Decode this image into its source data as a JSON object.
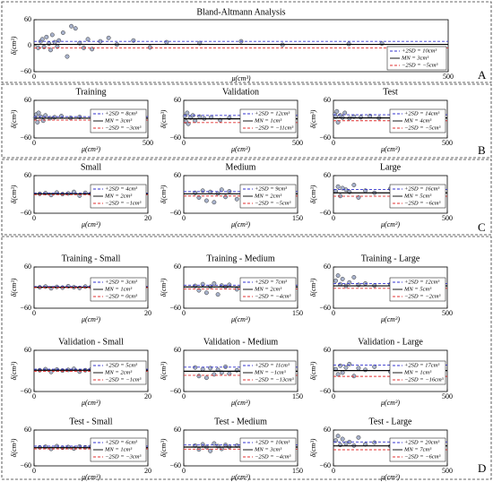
{
  "panel_labels": [
    "A",
    "B",
    "C",
    "D"
  ],
  "chart_data": [
    {
      "type": "scatter",
      "title": "Bland-Altmann Analysis",
      "xlabel": "μ(cm³)",
      "ylabel": "δ(cm³)",
      "x": [
        5,
        8,
        10,
        12,
        15,
        18,
        20,
        22,
        25,
        28,
        30,
        35,
        40,
        45,
        50,
        55,
        60,
        65,
        70,
        80,
        90,
        100,
        120,
        140,
        160,
        200,
        250,
        300,
        380,
        420
      ],
      "values": [
        -5,
        10,
        15,
        -3,
        20,
        5,
        -10,
        25,
        8,
        -2,
        12,
        30,
        -25,
        45,
        40,
        6,
        -5,
        15,
        -8,
        10,
        18,
        3,
        12,
        -4,
        8,
        6,
        10,
        2,
        4,
        5
      ],
      "xlim": [
        0,
        500
      ],
      "ylim": [
        -60,
        60
      ],
      "xticks": [
        0,
        500
      ],
      "yticks": [
        {
          "value": -60,
          "label": "−60"
        },
        0,
        60
      ],
      "series": [
        {
          "name": "+2SD = 10cm³",
          "value": 10,
          "color": "#3333cc"
        },
        {
          "name": "MN = 3cm³",
          "value": 3,
          "color": "#000000"
        },
        {
          "name": "−2SD = −5cm³",
          "value": -5,
          "color": "#e03030"
        }
      ]
    },
    {
      "type": "scatter",
      "title": "Training",
      "xlabel": "μ(cm³)",
      "ylabel": "δ(cm³)",
      "x": [
        5,
        10,
        15,
        20,
        30,
        40,
        50,
        70,
        90,
        120,
        160,
        200
      ],
      "values": [
        5,
        15,
        -10,
        20,
        8,
        -5,
        12,
        3,
        6,
        10,
        4,
        7
      ],
      "xlim": [
        0,
        500
      ],
      "ylim": [
        -60,
        60
      ],
      "xticks": [
        0,
        500
      ],
      "yticks": [
        {
          "value": -60,
          "label": "−60"
        },
        60
      ],
      "series": [
        {
          "name": "+2SD = 8cm³",
          "value": 8,
          "color": "#3333cc"
        },
        {
          "name": "MN = 3cm³",
          "value": 3,
          "color": "#000000"
        },
        {
          "name": "−2SD = −3cm³",
          "value": -3,
          "color": "#e03030"
        }
      ]
    },
    {
      "type": "scatter",
      "title": "Validation",
      "xlabel": "μ(cm³)",
      "ylabel": "δ(cm³)",
      "x": [
        5,
        10,
        15,
        20,
        30,
        40,
        50,
        70,
        90,
        120,
        160,
        200
      ],
      "values": [
        10,
        -8,
        20,
        -15,
        5,
        12,
        -5,
        8,
        2,
        6,
        -3,
        4
      ],
      "xlim": [
        0,
        500
      ],
      "ylim": [
        -60,
        60
      ],
      "xticks": [
        0,
        500
      ],
      "yticks": [
        {
          "value": -60,
          "label": "−60"
        },
        60
      ],
      "series": [
        {
          "name": "+2SD = 12cm³",
          "value": 12,
          "color": "#3333cc"
        },
        {
          "name": "MN = 1cm³",
          "value": 1,
          "color": "#000000"
        },
        {
          "name": "−2SD = −11cm³",
          "value": -11,
          "color": "#e03030"
        }
      ]
    },
    {
      "type": "scatter",
      "title": "Test",
      "xlabel": "μ(cm³)",
      "ylabel": "δ(cm³)",
      "x": [
        5,
        10,
        15,
        20,
        30,
        40,
        50,
        70,
        90,
        120,
        160,
        200
      ],
      "values": [
        15,
        8,
        25,
        -10,
        12,
        5,
        20,
        3,
        8,
        6,
        10,
        4
      ],
      "xlim": [
        0,
        500
      ],
      "ylim": [
        -60,
        60
      ],
      "xticks": [
        0,
        500
      ],
      "yticks": [
        {
          "value": -60,
          "label": "−60"
        },
        60
      ],
      "series": [
        {
          "name": "+2SD = 14cm³",
          "value": 14,
          "color": "#3333cc"
        },
        {
          "name": "MN = 4cm³",
          "value": 4,
          "color": "#000000"
        },
        {
          "name": "−2SD = −5cm³",
          "value": -5,
          "color": "#e03030"
        }
      ]
    },
    {
      "type": "scatter",
      "title": "Small",
      "xlabel": "μ(cm³)",
      "ylabel": "δ(cm³)",
      "x": [
        1,
        2,
        3,
        4,
        5,
        6,
        7,
        8,
        9,
        10,
        12,
        14
      ],
      "values": [
        2,
        4,
        -2,
        6,
        1,
        3,
        8,
        -4,
        5,
        2,
        10,
        3
      ],
      "xlim": [
        0,
        20
      ],
      "ylim": [
        -60,
        60
      ],
      "xticks": [
        0,
        20
      ],
      "yticks": [
        {
          "value": -60,
          "label": "−60"
        },
        60
      ],
      "series": [
        {
          "name": "+2SD = 4cm³",
          "value": 4,
          "color": "#3333cc"
        },
        {
          "name": "MN = 2cm³",
          "value": 2,
          "color": "#000000"
        },
        {
          "name": "−2SD = −1cm³",
          "value": -1,
          "color": "#e03030"
        }
      ]
    },
    {
      "type": "scatter",
      "title": "Medium",
      "xlabel": "μ(cm³)",
      "ylabel": "δ(cm³)",
      "x": [
        15,
        20,
        25,
        30,
        35,
        40,
        45,
        50,
        55,
        60,
        70,
        80
      ],
      "values": [
        5,
        -10,
        12,
        -20,
        8,
        -25,
        3,
        15,
        -8,
        10,
        -15,
        6
      ],
      "xlim": [
        0,
        150
      ],
      "ylim": [
        -60,
        60
      ],
      "xticks": [
        0,
        150
      ],
      "yticks": [
        {
          "value": -60,
          "label": "−60"
        },
        60
      ],
      "series": [
        {
          "name": "+2SD = 9cm³",
          "value": 9,
          "color": "#3333cc"
        },
        {
          "name": "MN = 2cm³",
          "value": 2,
          "color": "#000000"
        },
        {
          "name": "−2SD = −5cm³",
          "value": -5,
          "color": "#e03030"
        }
      ]
    },
    {
      "type": "scatter",
      "title": "Large",
      "xlabel": "μ(cm³)",
      "ylabel": "δ(cm³)",
      "x": [
        10,
        20,
        30,
        40,
        55,
        70,
        90,
        110,
        140,
        180,
        250,
        300
      ],
      "values": [
        10,
        25,
        -5,
        20,
        15,
        8,
        30,
        -10,
        12,
        5,
        18,
        8
      ],
      "xlim": [
        0,
        500
      ],
      "ylim": [
        -60,
        60
      ],
      "xticks": [
        0,
        500
      ],
      "yticks": [
        {
          "value": -60,
          "label": "−60"
        },
        60
      ],
      "series": [
        {
          "name": "+2SD = 16cm³",
          "value": 16,
          "color": "#3333cc"
        },
        {
          "name": "MN = 5cm³",
          "value": 5,
          "color": "#000000"
        },
        {
          "name": "−2SD = −6cm³",
          "value": -6,
          "color": "#e03030"
        }
      ]
    },
    {
      "type": "scatter",
      "title": "Training - Small",
      "xlabel": "μ(cm³)",
      "ylabel": "δ(cm³)",
      "x": [
        1,
        2,
        3,
        4,
        5,
        6,
        7,
        8,
        9,
        10,
        12,
        14
      ],
      "values": [
        1,
        3,
        -2,
        2,
        0,
        4,
        1,
        -1,
        3,
        2,
        1,
        0
      ],
      "xlim": [
        0,
        20
      ],
      "ylim": [
        -60,
        60
      ],
      "xticks": [
        0,
        20
      ],
      "yticks": [
        {
          "value": -60,
          "label": "−60"
        },
        60
      ],
      "series": [
        {
          "name": "+2SD = 3cm³",
          "value": 3,
          "color": "#3333cc"
        },
        {
          "name": "MN = 1cm³",
          "value": 1,
          "color": "#000000"
        },
        {
          "name": "−2SD = 0cm³",
          "value": 0,
          "color": "#e03030"
        }
      ]
    },
    {
      "type": "scatter",
      "title": "Training - Medium",
      "xlabel": "μ(cm³)",
      "ylabel": "δ(cm³)",
      "x": [
        15,
        20,
        25,
        30,
        35,
        40,
        45,
        50,
        55,
        60,
        70,
        80
      ],
      "values": [
        5,
        -8,
        10,
        -15,
        3,
        12,
        -20,
        6,
        2,
        8,
        -5,
        4
      ],
      "xlim": [
        0,
        150
      ],
      "ylim": [
        -60,
        60
      ],
      "xticks": [
        0,
        150
      ],
      "yticks": [
        {
          "value": -60,
          "label": "−60"
        },
        60
      ],
      "series": [
        {
          "name": "+2SD = 7cm³",
          "value": 7,
          "color": "#3333cc"
        },
        {
          "name": "MN = 2cm³",
          "value": 2,
          "color": "#000000"
        },
        {
          "name": "−2SD = −4cm³",
          "value": -4,
          "color": "#e03030"
        }
      ]
    },
    {
      "type": "scatter",
      "title": "Training - Large",
      "xlabel": "μ(cm³)",
      "ylabel": "δ(cm³)",
      "x": [
        10,
        20,
        30,
        40,
        55,
        70,
        90,
        110,
        140,
        180,
        250,
        300
      ],
      "values": [
        20,
        35,
        10,
        25,
        5,
        15,
        30,
        8,
        12,
        6,
        10,
        4
      ],
      "xlim": [
        0,
        500
      ],
      "ylim": [
        -60,
        60
      ],
      "xticks": [
        0,
        500
      ],
      "yticks": [
        {
          "value": -60,
          "label": "−60"
        },
        60
      ],
      "series": [
        {
          "name": "+2SD = 12cm³",
          "value": 12,
          "color": "#3333cc"
        },
        {
          "name": "MN = 5cm³",
          "value": 5,
          "color": "#000000"
        },
        {
          "name": "−2SD = −2cm³",
          "value": -2,
          "color": "#e03030"
        }
      ]
    },
    {
      "type": "scatter",
      "title": "Validation - Small",
      "xlabel": "μ(cm³)",
      "ylabel": "δ(cm³)",
      "x": [
        1,
        2,
        3,
        4,
        5,
        6,
        7,
        8,
        9,
        10,
        12,
        14
      ],
      "values": [
        2,
        5,
        -3,
        4,
        1,
        3,
        6,
        -2,
        2,
        4,
        1,
        3
      ],
      "xlim": [
        0,
        20
      ],
      "ylim": [
        -60,
        60
      ],
      "xticks": [
        0,
        20
      ],
      "yticks": [
        {
          "value": -60,
          "label": "−60"
        },
        60
      ],
      "series": [
        {
          "name": "+2SD = 5cm³",
          "value": 5,
          "color": "#3333cc"
        },
        {
          "name": "MN = 2cm³",
          "value": 2,
          "color": "#000000"
        },
        {
          "name": "−2SD = −1cm³",
          "value": -1,
          "color": "#e03030"
        }
      ]
    },
    {
      "type": "scatter",
      "title": "Validation - Medium",
      "xlabel": "μ(cm³)",
      "ylabel": "δ(cm³)",
      "x": [
        15,
        20,
        25,
        30,
        35,
        40,
        45,
        50,
        55,
        60,
        70,
        80
      ],
      "values": [
        10,
        -15,
        5,
        -20,
        8,
        -10,
        3,
        -5,
        12,
        -8,
        2,
        -3
      ],
      "xlim": [
        0,
        150
      ],
      "ylim": [
        -60,
        60
      ],
      "xticks": [
        0,
        150
      ],
      "yticks": [
        {
          "value": -60,
          "label": "−60"
        },
        60
      ],
      "series": [
        {
          "name": "+2SD = 11cm³",
          "value": 11,
          "color": "#3333cc"
        },
        {
          "name": "MN = −1cm³",
          "value": -1,
          "color": "#000000"
        },
        {
          "name": "−2SD = −13cm³",
          "value": -13,
          "color": "#e03030"
        }
      ]
    },
    {
      "type": "scatter",
      "title": "Validation - Large",
      "xlabel": "μ(cm³)",
      "ylabel": "δ(cm³)",
      "x": [
        10,
        20,
        30,
        40,
        55,
        70,
        90,
        110,
        140,
        180,
        250,
        300
      ],
      "values": [
        5,
        -10,
        15,
        -5,
        10,
        20,
        -15,
        8,
        3,
        12,
        -2,
        6
      ],
      "xlim": [
        0,
        500
      ],
      "ylim": [
        -60,
        60
      ],
      "xticks": [
        0,
        500
      ],
      "yticks": [
        {
          "value": -60,
          "label": "−60"
        },
        60
      ],
      "series": [
        {
          "name": "+2SD = 17cm³",
          "value": 17,
          "color": "#3333cc"
        },
        {
          "name": "MN = 1cm³",
          "value": 1,
          "color": "#000000"
        },
        {
          "name": "−2SD = −16cm³",
          "value": -16,
          "color": "#e03030"
        }
      ]
    },
    {
      "type": "scatter",
      "title": "Test - Small",
      "xlabel": "μ(cm³)",
      "ylabel": "δ(cm³)",
      "x": [
        1,
        2,
        3,
        4,
        5,
        6,
        7,
        8,
        9,
        10,
        12,
        14
      ],
      "values": [
        2,
        4,
        -3,
        6,
        1,
        3,
        -2,
        5,
        2,
        4,
        0,
        3
      ],
      "xlim": [
        0,
        20
      ],
      "ylim": [
        -60,
        60
      ],
      "xticks": [
        0,
        20
      ],
      "yticks": [
        {
          "value": -60,
          "label": "−60"
        },
        60
      ],
      "series": [
        {
          "name": "+2SD = 6cm³",
          "value": 6,
          "color": "#3333cc"
        },
        {
          "name": "MN = 1cm³",
          "value": 1,
          "color": "#000000"
        },
        {
          "name": "−2SD = −3cm³",
          "value": -3,
          "color": "#e03030"
        }
      ]
    },
    {
      "type": "scatter",
      "title": "Test - Medium",
      "xlabel": "μ(cm³)",
      "ylabel": "δ(cm³)",
      "x": [
        15,
        20,
        25,
        30,
        35,
        40,
        45,
        50,
        55,
        60,
        70,
        80
      ],
      "values": [
        8,
        -5,
        12,
        3,
        -10,
        15,
        6,
        -3,
        10,
        4,
        8,
        2
      ],
      "xlim": [
        0,
        150
      ],
      "ylim": [
        -60,
        60
      ],
      "xticks": [
        0,
        150
      ],
      "yticks": [
        {
          "value": -60,
          "label": "−60"
        },
        60
      ],
      "series": [
        {
          "name": "+2SD = 10cm³",
          "value": 10,
          "color": "#3333cc"
        },
        {
          "name": "MN = 3cm³",
          "value": 3,
          "color": "#000000"
        },
        {
          "name": "−2SD = −4cm³",
          "value": -4,
          "color": "#e03030"
        }
      ]
    },
    {
      "type": "scatter",
      "title": "Test - Large",
      "xlabel": "μ(cm³)",
      "ylabel": "δ(cm³)",
      "x": [
        10,
        20,
        30,
        40,
        55,
        70,
        90,
        110,
        140,
        180,
        250,
        300
      ],
      "values": [
        25,
        40,
        10,
        30,
        15,
        20,
        8,
        35,
        12,
        18,
        6,
        10
      ],
      "xlim": [
        0,
        500
      ],
      "ylim": [
        -60,
        60
      ],
      "xticks": [
        0,
        500
      ],
      "yticks": [
        {
          "value": -60,
          "label": "−60"
        },
        60
      ],
      "series": [
        {
          "name": "+2SD = 20cm³",
          "value": 20,
          "color": "#3333cc"
        },
        {
          "name": "MN = 7cm³",
          "value": 7,
          "color": "#000000"
        },
        {
          "name": "−2SD = −6cm³",
          "value": -6,
          "color": "#e03030"
        }
      ]
    }
  ]
}
